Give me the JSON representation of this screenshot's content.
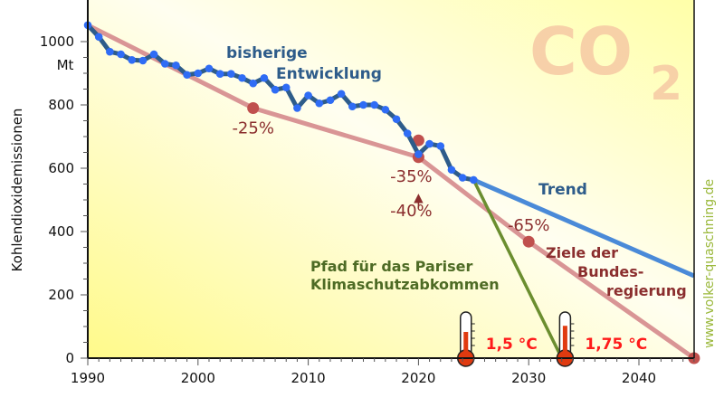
{
  "chart_data": {
    "type": "line",
    "ylabel": "Kohlendioxidemissionen",
    "yunit": "Mt",
    "xlim": [
      1990,
      2045
    ],
    "ylim": [
      0,
      1050
    ],
    "xticks": [
      1990,
      2000,
      2010,
      2020,
      2030,
      2040
    ],
    "yticks": [
      0,
      200,
      400,
      600,
      800,
      1000
    ],
    "watermark_title": "CO2",
    "series": [
      {
        "name": "bisherige Entwicklung",
        "color": "#2e5c8a",
        "marker_color": "#2f6cf5",
        "x": [
          1990,
          1991,
          1992,
          1993,
          1994,
          1995,
          1996,
          1997,
          1998,
          1999,
          2000,
          2001,
          2002,
          2003,
          2004,
          2005,
          2006,
          2007,
          2008,
          2009,
          2010,
          2011,
          2012,
          2013,
          2014,
          2015,
          2016,
          2017,
          2018,
          2019,
          2020,
          2021,
          2022,
          2023,
          2024,
          2025
        ],
        "y": [
          1052,
          1015,
          968,
          960,
          942,
          940,
          960,
          930,
          925,
          895,
          900,
          915,
          898,
          898,
          885,
          868,
          885,
          848,
          855,
          790,
          830,
          805,
          815,
          835,
          795,
          800,
          800,
          785,
          755,
          710,
          644,
          677,
          670,
          595,
          570,
          563
        ]
      },
      {
        "name": "Trend",
        "color": "#4a8ad8",
        "x": [
          2025,
          2045
        ],
        "y": [
          563,
          260
        ]
      },
      {
        "name": "Ziele der Bundesregierung",
        "color": "#d99595",
        "x": [
          1990,
          2005,
          2020,
          2030,
          2045
        ],
        "y": [
          1052,
          790,
          635,
          368,
          0
        ]
      },
      {
        "name": "Pfad für das Pariser Klimaschutzabkommen",
        "color": "#6b8e2f",
        "x": [
          2025,
          2033
        ],
        "y": [
          563,
          0
        ]
      }
    ],
    "target_points": [
      {
        "x": 2005,
        "y": 790,
        "label": "-25%"
      },
      {
        "x": 2020,
        "y": 688,
        "label": "-35%"
      },
      {
        "x": 2020,
        "y": 635,
        "label": "-40%"
      },
      {
        "x": 2030,
        "y": 368,
        "label": "-65%"
      },
      {
        "x": 2045,
        "y": 0,
        "label": ""
      }
    ],
    "thermometers": [
      {
        "x": 2024.3,
        "label": "1,5 °C",
        "level": 0.6
      },
      {
        "x": 2033.3,
        "label": "1,75 °C",
        "level": 0.75
      }
    ],
    "annotations": {
      "history_line1": "bisherige",
      "history_line2": "Entwicklung",
      "trend": "Trend",
      "paris_line1": "Pfad für das Pariser",
      "paris_line2": "Klimaschutzabkommen",
      "gov_line1": "Ziele der",
      "gov_line2": "Bundes-",
      "gov_line3": "regierung",
      "watermark": "www.volker-quaschning.de"
    },
    "grid": false,
    "target_color": "#c0504d",
    "label_color": "#8b2e2e"
  }
}
